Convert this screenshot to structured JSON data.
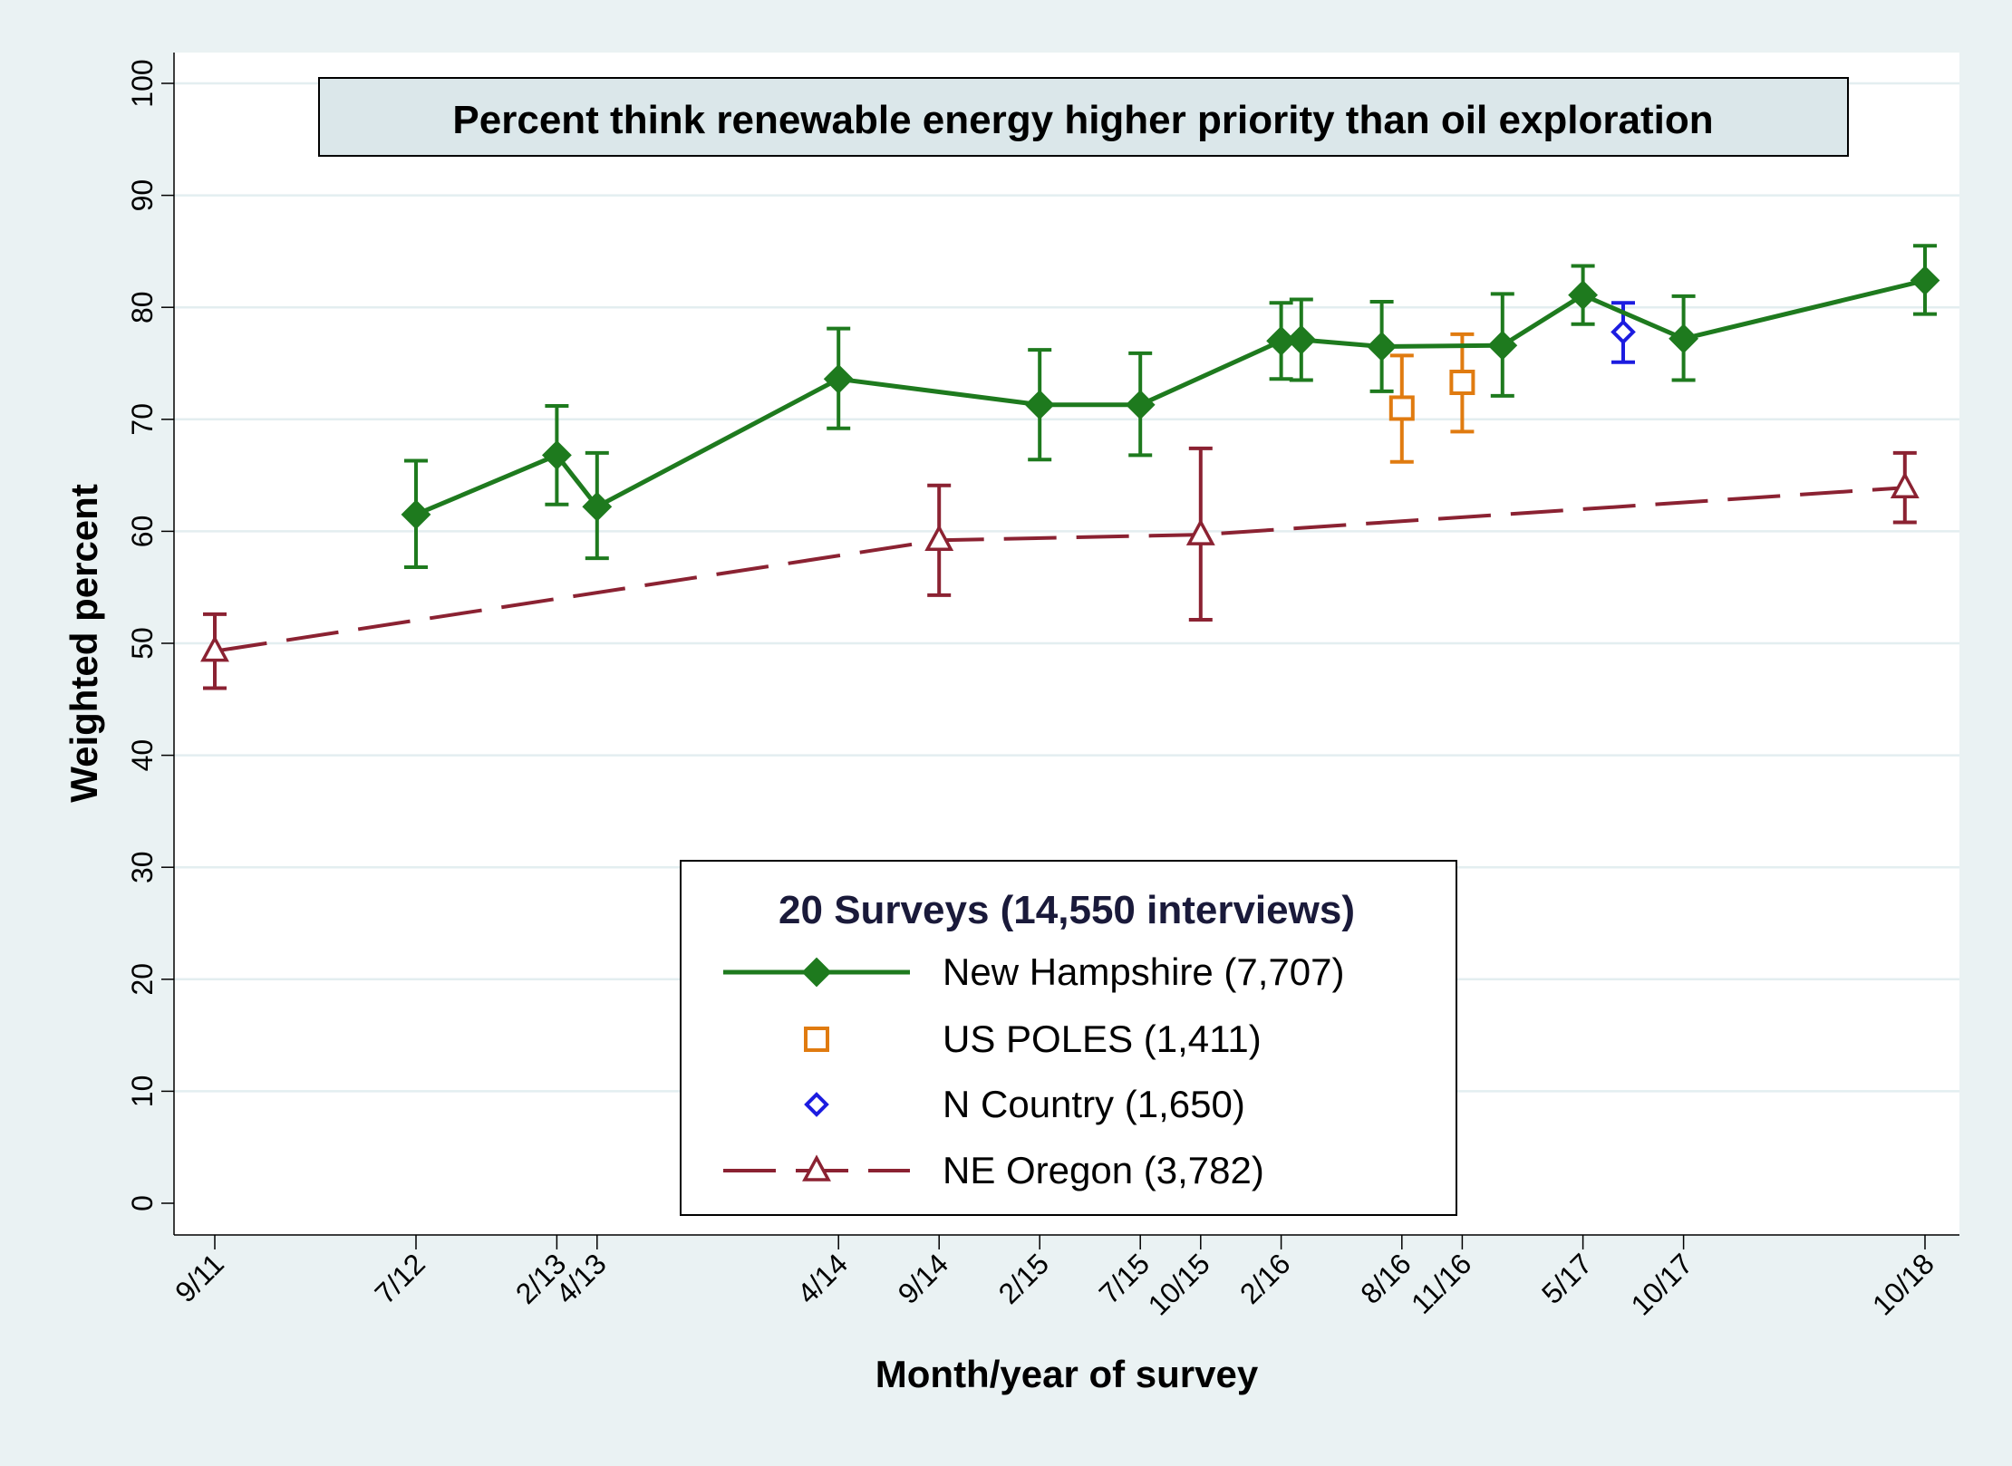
{
  "chart_data": {
    "type": "line",
    "title": "Percent think renewable energy higher priority than oil exploration",
    "xlabel": "Month/year of survey",
    "ylabel": "Weighted percent",
    "ylim": [
      0,
      100
    ],
    "yticks": [
      0,
      10,
      20,
      30,
      40,
      50,
      60,
      70,
      80,
      90,
      100
    ],
    "xlim": [
      "2011-09",
      "2018-10"
    ],
    "xticks": [
      {
        "label": "9/11",
        "date": "2011-09"
      },
      {
        "label": "7/12",
        "date": "2012-07"
      },
      {
        "label": "2/13",
        "date": "2013-02"
      },
      {
        "label": "4/13",
        "date": "2013-04"
      },
      {
        "label": "4/14",
        "date": "2014-04"
      },
      {
        "label": "9/14",
        "date": "2014-09"
      },
      {
        "label": "2/15",
        "date": "2015-02"
      },
      {
        "label": "7/15",
        "date": "2015-07"
      },
      {
        "label": "10/15",
        "date": "2015-10"
      },
      {
        "label": "2/16",
        "date": "2016-02"
      },
      {
        "label": "8/16",
        "date": "2016-08"
      },
      {
        "label": "11/16",
        "date": "2016-11"
      },
      {
        "label": "5/17",
        "date": "2017-05"
      },
      {
        "label": "10/17",
        "date": "2017-10"
      },
      {
        "label": "10/18",
        "date": "2018-10"
      }
    ],
    "grid": true,
    "legend": {
      "title": "20 Surveys  (14,550 interviews)",
      "position": "bottom-center",
      "entries": [
        {
          "label": "New Hampshire (7,707)",
          "series": "nh"
        },
        {
          "label": "US POLES (1,411)",
          "series": "poles"
        },
        {
          "label": "N Country (1,650)",
          "series": "ncountry"
        },
        {
          "label": "NE Oregon (3,782)",
          "series": "oregon"
        }
      ]
    },
    "series": [
      {
        "id": "nh",
        "color": "#1e7a1e",
        "marker": "diamond-filled",
        "line": "solid",
        "points": [
          {
            "date": "2012-07",
            "y": 61.5,
            "lo": 56.8,
            "hi": 66.3
          },
          {
            "date": "2013-02",
            "y": 66.8,
            "lo": 62.4,
            "hi": 71.2
          },
          {
            "date": "2013-04",
            "y": 62.2,
            "lo": 57.6,
            "hi": 67.0
          },
          {
            "date": "2014-04",
            "y": 73.6,
            "lo": 69.2,
            "hi": 78.1
          },
          {
            "date": "2015-02",
            "y": 71.3,
            "lo": 66.4,
            "hi": 76.2
          },
          {
            "date": "2015-07",
            "y": 71.3,
            "lo": 66.8,
            "hi": 75.9
          },
          {
            "date": "2016-02",
            "y": 77.0,
            "lo": 73.6,
            "hi": 80.4
          },
          {
            "date": "2016-03",
            "y": 77.1,
            "lo": 73.5,
            "hi": 80.7
          },
          {
            "date": "2016-07",
            "y": 76.5,
            "lo": 72.5,
            "hi": 80.5
          },
          {
            "date": "2017-01",
            "y": 76.6,
            "lo": 72.1,
            "hi": 81.2
          },
          {
            "date": "2017-05",
            "y": 81.1,
            "lo": 78.5,
            "hi": 83.7
          },
          {
            "date": "2017-10",
            "y": 77.2,
            "lo": 73.5,
            "hi": 81.0
          },
          {
            "date": "2018-10",
            "y": 82.4,
            "lo": 79.4,
            "hi": 85.5
          }
        ]
      },
      {
        "id": "poles",
        "color": "#e07b10",
        "marker": "square-hollow",
        "line": "none",
        "points": [
          {
            "date": "2016-08",
            "y": 71.0,
            "lo": 66.2,
            "hi": 75.7
          },
          {
            "date": "2016-11",
            "y": 73.3,
            "lo": 68.9,
            "hi": 77.6
          }
        ]
      },
      {
        "id": "ncountry",
        "color": "#1c1ce0",
        "marker": "diamond-hollow",
        "line": "none",
        "points": [
          {
            "date": "2017-07",
            "y": 77.8,
            "lo": 75.1,
            "hi": 80.4
          }
        ]
      },
      {
        "id": "oregon",
        "color": "#8b2232",
        "marker": "triangle-hollow",
        "line": "dashed",
        "points": [
          {
            "date": "2011-09",
            "y": 49.3,
            "lo": 46.0,
            "hi": 52.6
          },
          {
            "date": "2014-09",
            "y": 59.2,
            "lo": 54.3,
            "hi": 64.1
          },
          {
            "date": "2015-10",
            "y": 59.7,
            "lo": 52.1,
            "hi": 67.4
          },
          {
            "date": "2018-09",
            "y": 63.9,
            "lo": 60.8,
            "hi": 67.0
          }
        ]
      }
    ]
  }
}
